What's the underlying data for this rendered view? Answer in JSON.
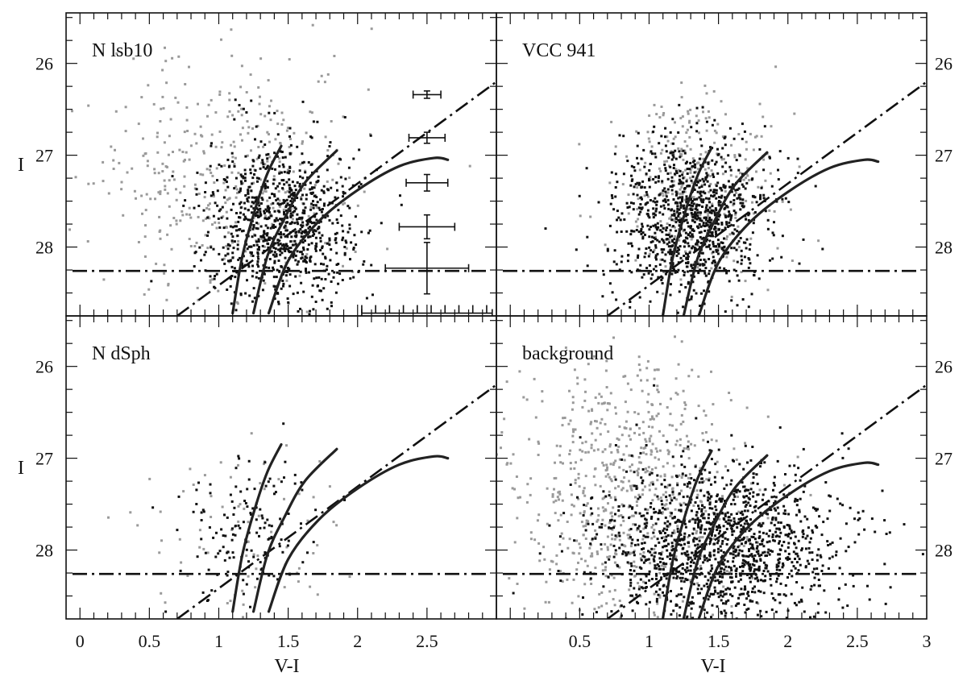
{
  "chart_data": {
    "type": "scatter",
    "xlabel": "V-I",
    "ylabel": "I",
    "xlim": [
      -0.1,
      3.0
    ],
    "ylim": [
      28.75,
      25.45
    ],
    "x_ticks": [
      0,
      0.5,
      1,
      1.5,
      2,
      2.5,
      3
    ],
    "x_tick_labels_left": [
      "0",
      "0.5",
      "1",
      "1.5",
      "2",
      "2.5"
    ],
    "x_tick_labels_right": [
      "0.5",
      "1",
      "1.5",
      "2",
      "2.5",
      "3"
    ],
    "y_ticks": [
      26,
      27,
      28
    ],
    "y_tick_labels": [
      "26",
      "27",
      "28"
    ],
    "trgb_I": 28.26,
    "reddening_line": [
      [
        0.7,
        28.75
      ],
      [
        3.0,
        26.2
      ]
    ],
    "isochrones": [
      [
        [
          1.1,
          28.72
        ],
        [
          1.17,
          28.1
        ],
        [
          1.26,
          27.6
        ],
        [
          1.35,
          27.2
        ],
        [
          1.45,
          26.9
        ]
      ],
      [
        [
          1.25,
          28.72
        ],
        [
          1.35,
          28.1
        ],
        [
          1.47,
          27.7
        ],
        [
          1.62,
          27.3
        ],
        [
          1.85,
          26.95
        ]
      ],
      [
        [
          1.36,
          28.72
        ],
        [
          1.5,
          28.15
        ],
        [
          1.72,
          27.72
        ],
        [
          2.0,
          27.38
        ],
        [
          2.3,
          27.12
        ],
        [
          2.55,
          27.03
        ],
        [
          2.65,
          27.05
        ]
      ]
    ],
    "error_bars": [
      {
        "x": 2.5,
        "y": 26.34,
        "xerr": 0.1,
        "yerr": 0.04
      },
      {
        "x": 2.5,
        "y": 26.81,
        "xerr": 0.13,
        "yerr": 0.06
      },
      {
        "x": 2.5,
        "y": 27.3,
        "xerr": 0.15,
        "yerr": 0.09
      },
      {
        "x": 2.5,
        "y": 27.78,
        "xerr": 0.2,
        "yerr": 0.13
      },
      {
        "x": 2.5,
        "y": 28.23,
        "xerr": 0.3,
        "yerr": 0.28
      },
      {
        "x": 2.5,
        "y": 28.72,
        "xerr": 0.47,
        "yerr": 0.0
      }
    ],
    "panels": [
      {
        "name": "N lsb10",
        "position": "top-left",
        "isochrone_shift": [
          0.0,
          0.0
        ],
        "show_error_bars": true,
        "black": {
          "n": 900,
          "cx": 1.45,
          "sx": 0.26,
          "cy": 27.75,
          "sy": 0.45,
          "seed": 11
        },
        "grey": {
          "n": 430,
          "cx": 1.0,
          "sx": 0.45,
          "cy": 27.25,
          "sy": 0.7,
          "seed": 12
        }
      },
      {
        "name": "VCC 941",
        "position": "top-right",
        "isochrone_shift": [
          0.0,
          0.02
        ],
        "show_error_bars": false,
        "black": {
          "n": 1000,
          "cx": 1.3,
          "sx": 0.28,
          "cy": 27.7,
          "sy": 0.43,
          "seed": 21
        },
        "grey": {
          "n": 330,
          "cx": 1.35,
          "sx": 0.3,
          "cy": 27.35,
          "sy": 0.5,
          "seed": 22
        }
      },
      {
        "name": "N dSph",
        "position": "bottom-left",
        "isochrone_shift": [
          0.0,
          -0.05
        ],
        "show_error_bars": false,
        "black": {
          "n": 150,
          "cx": 1.2,
          "sx": 0.24,
          "cy": 27.75,
          "sy": 0.42,
          "seed": 31
        },
        "grey": {
          "n": 80,
          "cx": 1.2,
          "sx": 0.35,
          "cy": 27.7,
          "sy": 0.55,
          "seed": 32
        }
      },
      {
        "name": "background",
        "position": "bottom-right",
        "isochrone_shift": [
          0.0,
          0.02
        ],
        "show_error_bars": false,
        "black": {
          "n": 1400,
          "cx": 1.5,
          "sx": 0.45,
          "cy": 27.95,
          "sy": 0.45,
          "seed": 41
        },
        "grey": {
          "n": 750,
          "cx": 0.85,
          "sx": 0.4,
          "cy": 27.35,
          "sy": 0.75,
          "seed": 42
        }
      }
    ]
  },
  "colors": {
    "black_points": "#111111",
    "grey_points": "#9a9a9a",
    "lines": "#222222"
  }
}
